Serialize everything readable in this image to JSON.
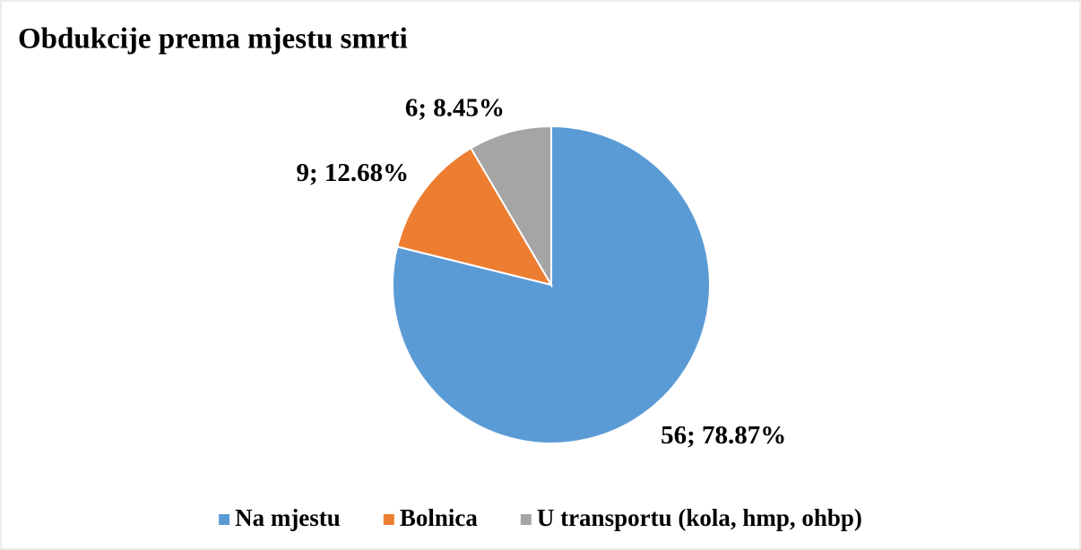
{
  "chart_data": {
    "type": "pie",
    "title": "Obdukcije prema mjestu smrti",
    "categories": [
      "Na mjestu",
      "Bolnica",
      "U transportu (kola, hmp, ohbp)"
    ],
    "values": [
      56,
      9,
      6
    ],
    "value_labels": [
      "56; 78.87%",
      "9; 12.68%",
      "6; 8.45%"
    ],
    "colors": [
      "#5b9bd5",
      "#ed7d31",
      "#a5a5a5"
    ],
    "legend": "bottom"
  }
}
